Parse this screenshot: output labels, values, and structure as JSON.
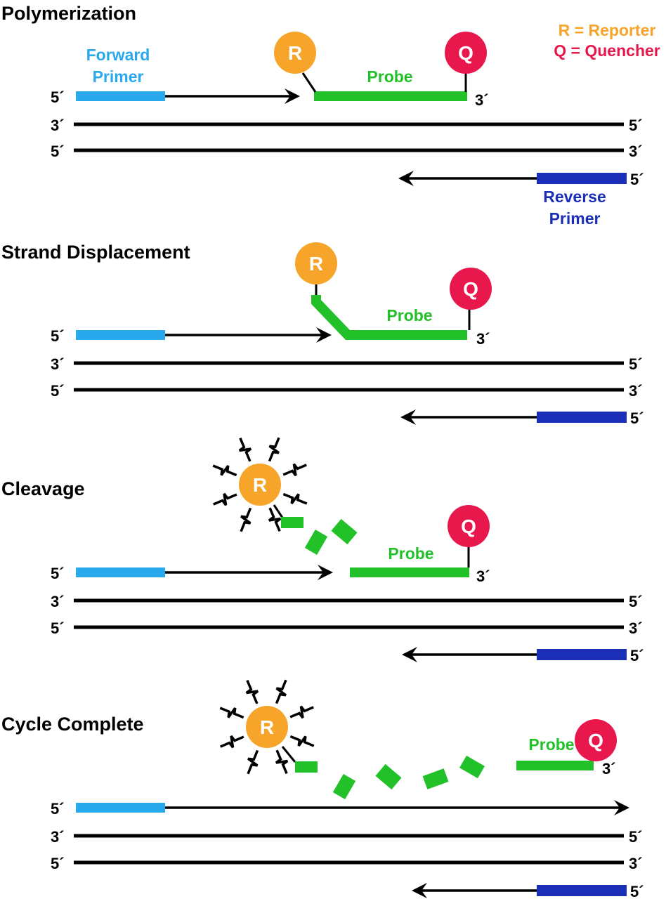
{
  "panels": [
    {
      "title": "Polymerization"
    },
    {
      "title": "Strand Displacement"
    },
    {
      "title": "Cleavage"
    },
    {
      "title": "Cycle Complete"
    }
  ],
  "legend": {
    "reporter": "R = Reporter",
    "quencher": "Q = Quencher"
  },
  "labels": {
    "forward_primer_line1": "Forward",
    "forward_primer_line2": "Primer",
    "reverse_primer_line1": "Reverse",
    "reverse_primer_line2": "Primer",
    "probe": "Probe",
    "reporter_letter": "R",
    "quencher_letter": "Q",
    "five_prime": "5´",
    "three_prime": "3´"
  },
  "colors": {
    "forward_primer": "#2aa8ec",
    "reverse_primer": "#1a2fb5",
    "probe": "#22c12a",
    "reporter": "#f6a52a",
    "quencher": "#e8184c",
    "strand": "#000000"
  }
}
